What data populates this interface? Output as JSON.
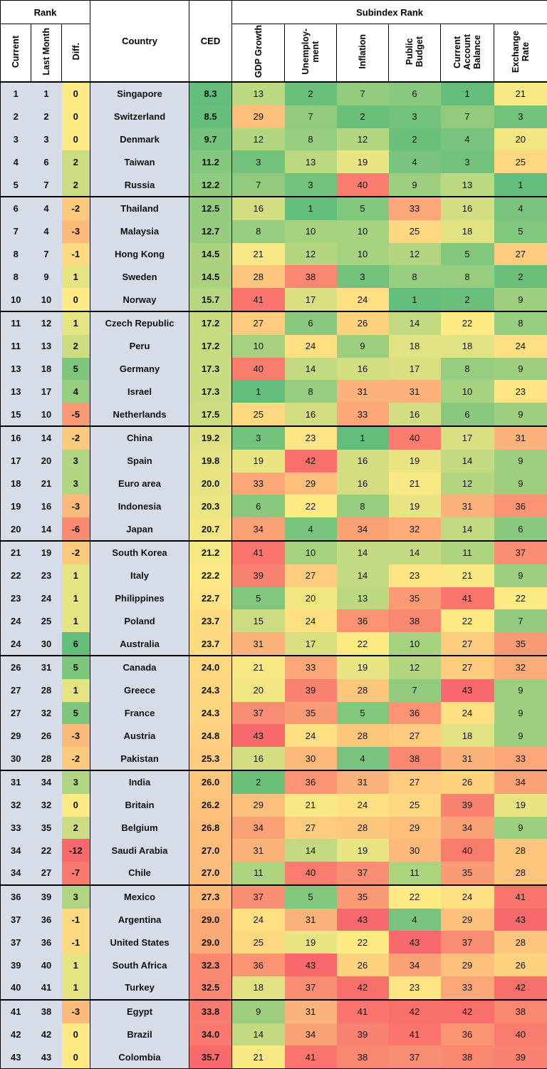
{
  "chart_data": {
    "type": "table",
    "header_groups": [
      "Rank",
      "Subindex Rank"
    ],
    "columns": {
      "current": "Current",
      "last_month": "Last Month",
      "diff": "Diff.",
      "country": "Country",
      "ced": "CED",
      "gdp_growth": "GDP Growth",
      "unemployment": "Unemploy-\nment",
      "inflation": "Inflation",
      "public_budget": "Public\nBudget",
      "current_account": "Current\nAccount\nBalance",
      "exchange_rate": "Exchange\nRate"
    },
    "rows": [
      {
        "current": "1",
        "last_month": "1",
        "diff": "0",
        "country": "Singapore",
        "ced": "8.3",
        "sub": [
          13,
          2,
          7,
          6,
          1,
          21
        ]
      },
      {
        "current": "2",
        "last_month": "2",
        "diff": "0",
        "country": "Switzerland",
        "ced": "8.5",
        "sub": [
          29,
          7,
          2,
          3,
          7,
          3
        ]
      },
      {
        "current": "3",
        "last_month": "3",
        "diff": "0",
        "country": "Denmark",
        "ced": "9.7",
        "sub": [
          12,
          8,
          12,
          2,
          4,
          20
        ]
      },
      {
        "current": "4",
        "last_month": "6",
        "diff": "2",
        "country": "Taiwan",
        "ced": "11.2",
        "sub": [
          3,
          13,
          19,
          4,
          3,
          25
        ]
      },
      {
        "current": "5",
        "last_month": "7",
        "diff": "2",
        "country": "Russia",
        "ced": "12.2",
        "sub": [
          7,
          3,
          40,
          9,
          13,
          1
        ]
      },
      {
        "current": "6",
        "last_month": "4",
        "diff": "-2",
        "country": "Thailand",
        "ced": "12.5",
        "sub": [
          16,
          1,
          5,
          33,
          16,
          4
        ]
      },
      {
        "current": "7",
        "last_month": "4",
        "diff": "-3",
        "country": "Malaysia",
        "ced": "12.7",
        "sub": [
          8,
          10,
          10,
          25,
          18,
          5
        ]
      },
      {
        "current": "8",
        "last_month": "7",
        "diff": "-1",
        "country": "Hong Kong",
        "ced": "14.5",
        "sub": [
          21,
          12,
          10,
          12,
          5,
          27
        ]
      },
      {
        "current": "8",
        "last_month": "9",
        "diff": "1",
        "country": "Sweden",
        "ced": "14.5",
        "sub": [
          28,
          38,
          3,
          8,
          8,
          2
        ]
      },
      {
        "current": "10",
        "last_month": "10",
        "diff": "0",
        "country": "Norway",
        "ced": "15.7",
        "sub": [
          41,
          17,
          24,
          1,
          2,
          9
        ]
      },
      {
        "current": "11",
        "last_month": "12",
        "diff": "1",
        "country": "Czech Republic",
        "ced": "17.2",
        "sub": [
          27,
          6,
          26,
          14,
          22,
          8
        ]
      },
      {
        "current": "11",
        "last_month": "13",
        "diff": "2",
        "country": "Peru",
        "ced": "17.2",
        "sub": [
          10,
          24,
          9,
          18,
          18,
          24
        ]
      },
      {
        "current": "13",
        "last_month": "18",
        "diff": "5",
        "country": "Germany",
        "ced": "17.3",
        "sub": [
          40,
          14,
          16,
          17,
          8,
          9
        ]
      },
      {
        "current": "13",
        "last_month": "17",
        "diff": "4",
        "country": "Israel",
        "ced": "17.3",
        "sub": [
          1,
          8,
          31,
          31,
          10,
          23
        ]
      },
      {
        "current": "15",
        "last_month": "10",
        "diff": "-5",
        "country": "Netherlands",
        "ced": "17.5",
        "sub": [
          25,
          16,
          33,
          16,
          6,
          9
        ]
      },
      {
        "current": "16",
        "last_month": "14",
        "diff": "-2",
        "country": "China",
        "ced": "19.2",
        "sub": [
          3,
          23,
          1,
          40,
          17,
          31
        ]
      },
      {
        "current": "17",
        "last_month": "20",
        "diff": "3",
        "country": "Spain",
        "ced": "19.8",
        "sub": [
          19,
          42,
          16,
          19,
          14,
          9
        ]
      },
      {
        "current": "18",
        "last_month": "21",
        "diff": "3",
        "country": "Euro area",
        "ced": "20.0",
        "sub": [
          33,
          29,
          16,
          21,
          12,
          9
        ]
      },
      {
        "current": "19",
        "last_month": "16",
        "diff": "-3",
        "country": "Indonesia",
        "ced": "20.3",
        "sub": [
          6,
          22,
          8,
          19,
          31,
          36
        ]
      },
      {
        "current": "20",
        "last_month": "14",
        "diff": "-6",
        "country": "Japan",
        "ced": "20.7",
        "sub": [
          34,
          4,
          34,
          32,
          14,
          6
        ]
      },
      {
        "current": "21",
        "last_month": "19",
        "diff": "-2",
        "country": "South Korea",
        "ced": "21.2",
        "sub": [
          41,
          10,
          14,
          14,
          11,
          37
        ]
      },
      {
        "current": "22",
        "last_month": "23",
        "diff": "1",
        "country": "Italy",
        "ced": "22.2",
        "sub": [
          39,
          27,
          14,
          23,
          21,
          9
        ]
      },
      {
        "current": "23",
        "last_month": "24",
        "diff": "1",
        "country": "Philippines",
        "ced": "22.7",
        "sub": [
          5,
          20,
          13,
          35,
          41,
          22
        ]
      },
      {
        "current": "24",
        "last_month": "25",
        "diff": "1",
        "country": "Poland",
        "ced": "23.7",
        "sub": [
          15,
          24,
          36,
          38,
          22,
          7
        ]
      },
      {
        "current": "24",
        "last_month": "30",
        "diff": "6",
        "country": "Australia",
        "ced": "23.7",
        "sub": [
          31,
          17,
          22,
          10,
          27,
          35
        ]
      },
      {
        "current": "26",
        "last_month": "31",
        "diff": "5",
        "country": "Canada",
        "ced": "24.0",
        "sub": [
          21,
          33,
          19,
          12,
          27,
          32
        ]
      },
      {
        "current": "27",
        "last_month": "28",
        "diff": "1",
        "country": "Greece",
        "ced": "24.3",
        "sub": [
          20,
          39,
          28,
          7,
          43,
          9
        ]
      },
      {
        "current": "27",
        "last_month": "32",
        "diff": "5",
        "country": "France",
        "ced": "24.3",
        "sub": [
          37,
          35,
          5,
          36,
          24,
          9
        ]
      },
      {
        "current": "29",
        "last_month": "26",
        "diff": "-3",
        "country": "Austria",
        "ced": "24.8",
        "sub": [
          43,
          24,
          28,
          27,
          18,
          9
        ]
      },
      {
        "current": "30",
        "last_month": "28",
        "diff": "-2",
        "country": "Pakistan",
        "ced": "25.3",
        "sub": [
          16,
          30,
          4,
          38,
          31,
          33
        ]
      },
      {
        "current": "31",
        "last_month": "34",
        "diff": "3",
        "country": "India",
        "ced": "26.0",
        "sub": [
          2,
          36,
          31,
          27,
          26,
          34
        ]
      },
      {
        "current": "32",
        "last_month": "32",
        "diff": "0",
        "country": "Britain",
        "ced": "26.2",
        "sub": [
          29,
          21,
          24,
          25,
          39,
          19
        ]
      },
      {
        "current": "33",
        "last_month": "35",
        "diff": "2",
        "country": "Belgium",
        "ced": "26.8",
        "sub": [
          34,
          27,
          28,
          29,
          34,
          9
        ]
      },
      {
        "current": "34",
        "last_month": "22",
        "diff": "-12",
        "country": "Saudi Arabia",
        "ced": "27.0",
        "sub": [
          31,
          14,
          19,
          30,
          40,
          28
        ]
      },
      {
        "current": "34",
        "last_month": "27",
        "diff": "-7",
        "country": "Chile",
        "ced": "27.0",
        "sub": [
          11,
          40,
          37,
          11,
          35,
          28
        ]
      },
      {
        "current": "36",
        "last_month": "39",
        "diff": "3",
        "country": "Mexico",
        "ced": "27.3",
        "sub": [
          37,
          5,
          35,
          22,
          24,
          41
        ]
      },
      {
        "current": "37",
        "last_month": "36",
        "diff": "-1",
        "country": "Argentina",
        "ced": "29.0",
        "sub": [
          24,
          31,
          43,
          4,
          29,
          43
        ]
      },
      {
        "current": "37",
        "last_month": "36",
        "diff": "-1",
        "country": "United States",
        "ced": "29.0",
        "sub": [
          25,
          19,
          22,
          43,
          37,
          28
        ]
      },
      {
        "current": "39",
        "last_month": "40",
        "diff": "1",
        "country": "South Africa",
        "ced": "32.3",
        "sub": [
          36,
          43,
          26,
          34,
          29,
          26
        ]
      },
      {
        "current": "40",
        "last_month": "41",
        "diff": "1",
        "country": "Turkey",
        "ced": "32.5",
        "sub": [
          18,
          37,
          42,
          23,
          33,
          42
        ]
      },
      {
        "current": "41",
        "last_month": "38",
        "diff": "-3",
        "country": "Egypt",
        "ced": "33.8",
        "sub": [
          9,
          31,
          41,
          42,
          42,
          38
        ]
      },
      {
        "current": "42",
        "last_month": "42",
        "diff": "0",
        "country": "Brazil",
        "ced": "34.0",
        "sub": [
          14,
          34,
          39,
          41,
          36,
          40
        ]
      },
      {
        "current": "43",
        "last_month": "43",
        "diff": "0",
        "country": "Colombia",
        "ced": "35.7",
        "sub": [
          21,
          41,
          38,
          37,
          38,
          39
        ]
      }
    ],
    "color_scale": {
      "good": "#63be7b",
      "mid": "#ffeb84",
      "bad": "#f8696b",
      "label_bg": "#d6dde8"
    }
  }
}
